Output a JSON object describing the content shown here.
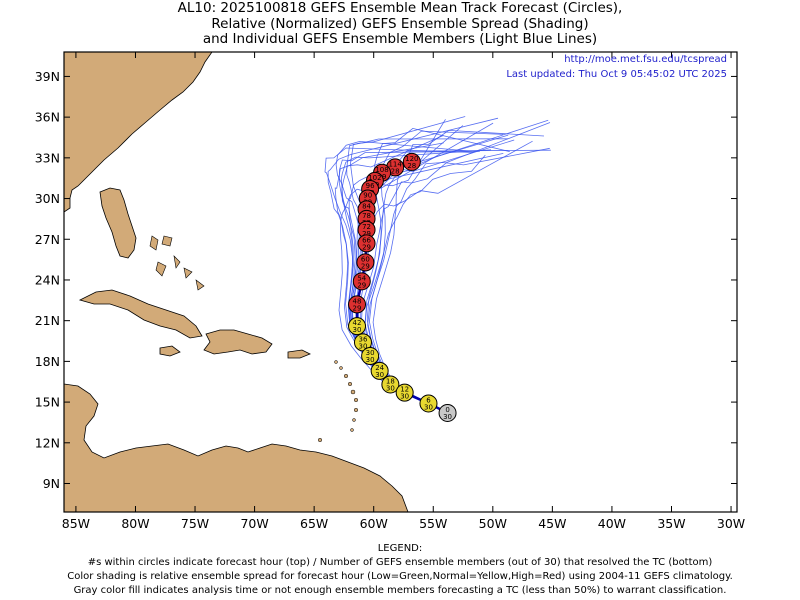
{
  "title": {
    "line1": "AL10: 2025100818 GEFS Ensemble Mean Track Forecast (Circles),",
    "line2": "Relative (Normalized) GEFS Ensemble Spread (Shading)",
    "line3": "and Individual GEFS Ensemble Members (Light Blue Lines)"
  },
  "source_url": "http://moe.met.fsu.edu/tcspread",
  "last_updated": "Last updated: Thu Oct 9 05:45:02 UTC 2025",
  "legend": {
    "heading": "LEGEND:",
    "line1": "#s within circles indicate forecast hour (top) / Number of GEFS ensemble members (out of 30) that resolved the TC (bottom)",
    "line2": "Color shading is relative ensemble spread for forecast hour (Low=Green,Normal=Yellow,High=Red) using 2004-11 GEFS climatology.",
    "line3": "Gray color fill indicates analysis time or not enough ensemble members forecasting a TC (less than 50%) to warrant classification."
  },
  "axes": {
    "lon_ticks": [
      "85W",
      "80W",
      "75W",
      "70W",
      "65W",
      "60W",
      "55W",
      "50W",
      "45W",
      "40W",
      "35W",
      "30W"
    ],
    "lat_ticks": [
      "39N",
      "36N",
      "33N",
      "30N",
      "27N",
      "24N",
      "21N",
      "18N",
      "15N",
      "12N",
      "9N"
    ],
    "lon_range": [
      -86,
      -29.5
    ],
    "lat_range": [
      6.9,
      40.8
    ]
  },
  "colors": {
    "land": "#d2aa78",
    "ocean": "#ffffff",
    "member_track": "#3a55ee",
    "mean_track": "#0000aa",
    "low_spread": "#22aa22",
    "normal_spread": "#e8d830",
    "high_spread": "#dd3030",
    "analysis_gray": "#c8c8c8"
  },
  "mean_track": [
    {
      "hour": "0",
      "members": "30",
      "lon": -53.8,
      "lat": 14.2,
      "spread": "gray"
    },
    {
      "hour": "6",
      "members": "30",
      "lon": -55.4,
      "lat": 14.9,
      "spread": "normal"
    },
    {
      "hour": "12",
      "members": "30",
      "lon": -57.4,
      "lat": 15.7,
      "spread": "normal"
    },
    {
      "hour": "18",
      "members": "30",
      "lon": -58.6,
      "lat": 16.3,
      "spread": "normal"
    },
    {
      "hour": "24",
      "members": "30",
      "lon": -59.5,
      "lat": 17.3,
      "spread": "normal"
    },
    {
      "hour": "30",
      "members": "30",
      "lon": -60.3,
      "lat": 18.4,
      "spread": "normal"
    },
    {
      "hour": "36",
      "members": "30",
      "lon": -60.9,
      "lat": 19.4,
      "spread": "normal"
    },
    {
      "hour": "42",
      "members": "30",
      "lon": -61.4,
      "lat": 20.6,
      "spread": "normal"
    },
    {
      "hour": "48",
      "members": "29",
      "lon": -61.4,
      "lat": 22.2,
      "spread": "high"
    },
    {
      "hour": "54",
      "members": "29",
      "lon": -61.0,
      "lat": 23.9,
      "spread": "high"
    },
    {
      "hour": "60",
      "members": "29",
      "lon": -60.7,
      "lat": 25.3,
      "spread": "high"
    },
    {
      "hour": "66",
      "members": "29",
      "lon": -60.6,
      "lat": 26.7,
      "spread": "high"
    },
    {
      "hour": "72",
      "members": "29",
      "lon": -60.6,
      "lat": 27.7,
      "spread": "high"
    },
    {
      "hour": "78",
      "members": "29",
      "lon": -60.6,
      "lat": 28.5,
      "spread": "high"
    },
    {
      "hour": "84",
      "members": "29",
      "lon": -60.6,
      "lat": 29.2,
      "spread": "high"
    },
    {
      "hour": "90",
      "members": "29",
      "lon": -60.5,
      "lat": 30.0,
      "spread": "high"
    },
    {
      "hour": "96",
      "members": "29",
      "lon": -60.3,
      "lat": 30.7,
      "spread": "high"
    },
    {
      "hour": "102",
      "members": "29",
      "lon": -59.9,
      "lat": 31.3,
      "spread": "high"
    },
    {
      "hour": "108",
      "members": "29",
      "lon": -59.3,
      "lat": 31.9,
      "spread": "high"
    },
    {
      "hour": "114",
      "members": "28",
      "lon": -58.2,
      "lat": 32.3,
      "spread": "high"
    },
    {
      "hour": "120",
      "members": "28",
      "lon": -56.8,
      "lat": 32.7,
      "spread": "high"
    }
  ]
}
